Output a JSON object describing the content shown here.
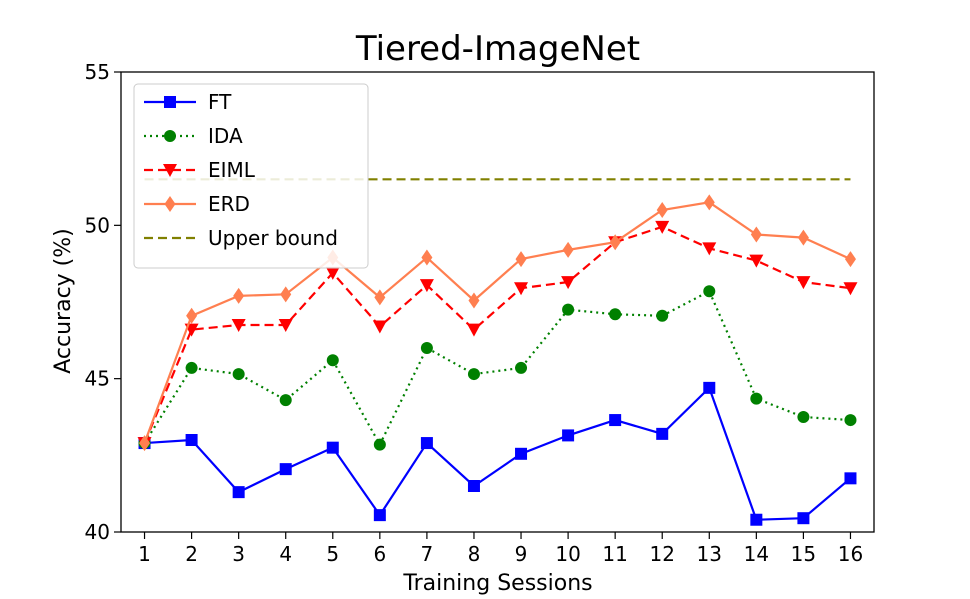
{
  "chart_data": {
    "type": "line",
    "title": "Tiered-ImageNet",
    "xlabel": "Training Sessions",
    "ylabel": "Accuracy (%)",
    "x": [
      "1",
      "2",
      "3",
      "4",
      "5",
      "6",
      "7",
      "8",
      "9",
      "10",
      "11",
      "12",
      "13",
      "14",
      "15",
      "16"
    ],
    "xlim": [
      0.5,
      16.5
    ],
    "ylim": [
      40,
      55
    ],
    "yticks": [
      "40",
      "45",
      "50",
      "55"
    ],
    "grid": false,
    "legend_position": "top-left",
    "series": [
      {
        "name": "FT",
        "color": "#0000ff",
        "line_style": "solid",
        "marker": "square",
        "values": [
          42.9,
          43.0,
          41.3,
          42.05,
          42.75,
          40.55,
          42.9,
          41.5,
          42.55,
          43.15,
          43.65,
          43.2,
          44.7,
          40.4,
          40.45,
          41.75
        ]
      },
      {
        "name": "IDA",
        "color": "#008000",
        "line_style": "dotted",
        "marker": "circle",
        "values": [
          42.9,
          45.35,
          45.15,
          44.3,
          45.6,
          42.85,
          46.0,
          45.15,
          45.35,
          47.25,
          47.1,
          47.05,
          47.85,
          44.35,
          43.75,
          43.65
        ]
      },
      {
        "name": "EIML",
        "color": "#ff0000",
        "line_style": "dashed",
        "marker": "triangle-down",
        "values": [
          42.9,
          46.6,
          46.75,
          46.75,
          48.45,
          46.7,
          48.05,
          46.6,
          47.95,
          48.15,
          49.45,
          49.95,
          49.25,
          48.85,
          48.15,
          47.95
        ]
      },
      {
        "name": "ERD",
        "color": "#ff7f50",
        "line_style": "solid",
        "marker": "diamond",
        "values": [
          42.9,
          47.05,
          47.7,
          47.75,
          48.95,
          47.65,
          48.95,
          47.55,
          48.9,
          49.2,
          49.45,
          50.5,
          50.75,
          49.7,
          49.6,
          48.9
        ]
      },
      {
        "name": "Upper bound",
        "color": "#808000",
        "line_style": "dashed",
        "marker": "none",
        "values": [
          51.5,
          51.5,
          51.5,
          51.5,
          51.5,
          51.5,
          51.5,
          51.5,
          51.5,
          51.5,
          51.5,
          51.5,
          51.5,
          51.5,
          51.5,
          51.5
        ]
      }
    ]
  }
}
